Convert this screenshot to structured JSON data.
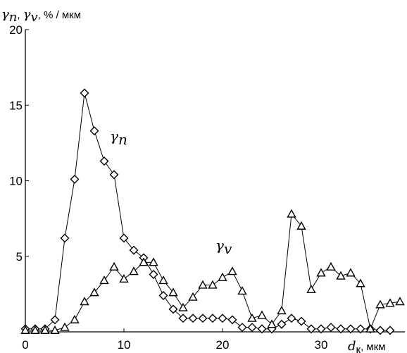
{
  "chart_data": {
    "type": "line",
    "ylabel_parts": [
      "γ",
      "n",
      ", ",
      "γ",
      "v",
      ", % / мкм"
    ],
    "xlabel_parts": [
      "d",
      "к",
      ", мкм"
    ],
    "xlim": [
      0,
      38.5
    ],
    "ylim": [
      0,
      20
    ],
    "x_ticks": [
      0,
      10,
      20,
      30
    ],
    "y_ticks": [
      0,
      5,
      10,
      15,
      20
    ],
    "x_tick_labels": [
      "0",
      "10",
      "20",
      "30"
    ],
    "y_tick_labels": [
      "",
      "5",
      "10",
      "15",
      "20"
    ],
    "series": [
      {
        "name": "γn",
        "label_parts": [
          "γ",
          "n"
        ],
        "marker": "diamond",
        "points": [
          [
            0,
            0.2
          ],
          [
            1,
            0.2
          ],
          [
            2,
            0.2
          ],
          [
            3,
            0.8
          ],
          [
            4,
            6.2
          ],
          [
            5,
            10.1
          ],
          [
            6,
            15.8
          ],
          [
            7,
            13.3
          ],
          [
            8,
            11.3
          ],
          [
            9,
            10.4
          ],
          [
            10,
            6.2
          ],
          [
            11,
            5.4
          ],
          [
            12,
            4.9
          ],
          [
            13,
            3.8
          ],
          [
            14,
            2.4
          ],
          [
            15,
            1.5
          ],
          [
            16,
            0.9
          ],
          [
            17,
            0.9
          ],
          [
            18,
            0.9
          ],
          [
            19,
            0.9
          ],
          [
            20,
            0.9
          ],
          [
            21,
            0.8
          ],
          [
            22,
            0.3
          ],
          [
            23,
            0.3
          ],
          [
            24,
            0.2
          ],
          [
            25,
            0.2
          ],
          [
            26,
            0.5
          ],
          [
            27,
            0.9
          ],
          [
            28,
            0.7
          ],
          [
            29,
            0.2
          ],
          [
            30,
            0.2
          ],
          [
            31,
            0.3
          ],
          [
            32,
            0.2
          ],
          [
            33,
            0.2
          ],
          [
            34,
            0.2
          ],
          [
            35,
            0.2
          ],
          [
            36,
            0.1
          ],
          [
            37,
            0.1
          ]
        ]
      },
      {
        "name": "γv",
        "label_parts": [
          "γ",
          "v"
        ],
        "marker": "triangle",
        "points": [
          [
            0,
            0.1
          ],
          [
            1,
            0.1
          ],
          [
            2,
            0.1
          ],
          [
            3,
            0.1
          ],
          [
            4,
            0.3
          ],
          [
            5,
            0.8
          ],
          [
            6,
            2.0
          ],
          [
            7,
            2.6
          ],
          [
            8,
            3.4
          ],
          [
            9,
            4.3
          ],
          [
            10,
            3.5
          ],
          [
            11,
            4.0
          ],
          [
            12,
            4.6
          ],
          [
            13,
            4.6
          ],
          [
            14,
            3.4
          ],
          [
            15,
            2.6
          ],
          [
            16,
            1.6
          ],
          [
            17,
            2.3
          ],
          [
            18,
            3.1
          ],
          [
            19,
            3.1
          ],
          [
            20,
            3.6
          ],
          [
            21,
            4.0
          ],
          [
            22,
            2.7
          ],
          [
            23,
            0.9
          ],
          [
            24,
            1.1
          ],
          [
            25,
            0.5
          ],
          [
            26,
            1.4
          ],
          [
            27,
            7.8
          ],
          [
            28,
            7.0
          ],
          [
            29,
            2.8
          ],
          [
            30,
            3.9
          ],
          [
            31,
            4.3
          ],
          [
            32,
            3.7
          ],
          [
            33,
            3.9
          ],
          [
            34,
            3.2
          ],
          [
            35,
            0.2
          ],
          [
            36,
            1.8
          ],
          [
            37,
            1.9
          ],
          [
            38,
            2.0
          ]
        ]
      }
    ]
  }
}
